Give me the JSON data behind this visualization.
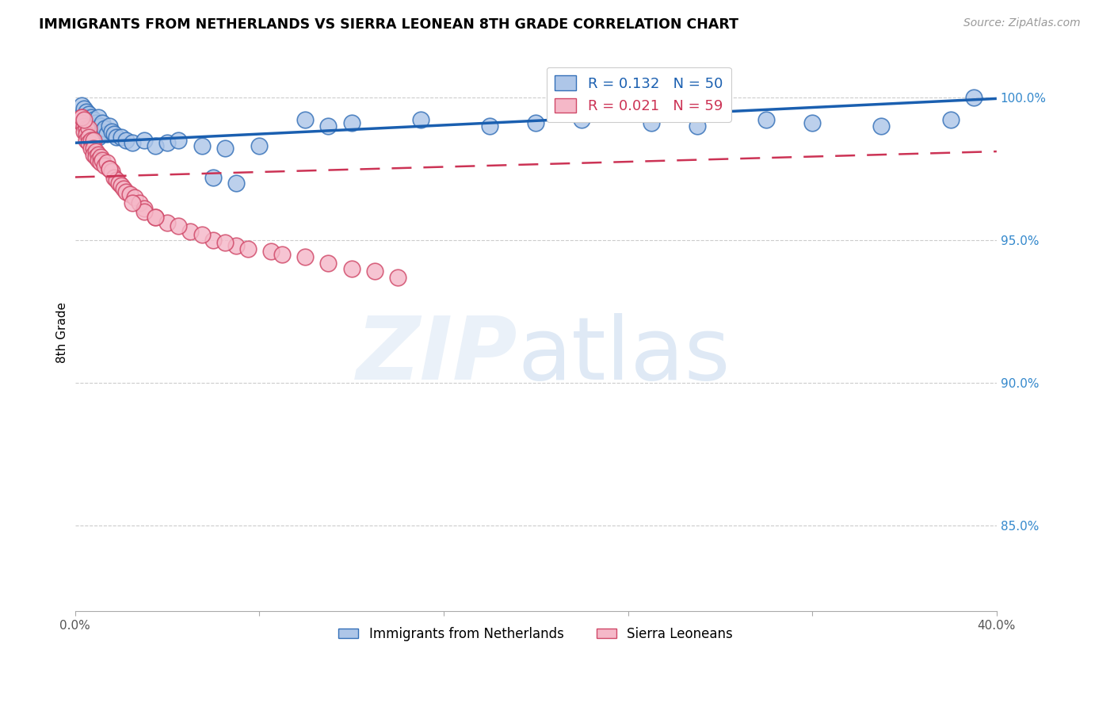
{
  "title": "IMMIGRANTS FROM NETHERLANDS VS SIERRA LEONEAN 8TH GRADE CORRELATION CHART",
  "source": "Source: ZipAtlas.com",
  "ylabel": "8th Grade",
  "y_tick_labels": [
    "85.0%",
    "90.0%",
    "95.0%",
    "100.0%"
  ],
  "y_tick_values": [
    0.85,
    0.9,
    0.95,
    1.0
  ],
  "xlim": [
    0.0,
    0.4
  ],
  "ylim": [
    0.82,
    1.015
  ],
  "legend_blue_r": "0.132",
  "legend_blue_n": "50",
  "legend_pink_r": "0.021",
  "legend_pink_n": "59",
  "blue_color": "#aec6e8",
  "blue_edge_color": "#3470b8",
  "pink_color": "#f5b8c8",
  "pink_edge_color": "#d04868",
  "blue_line_color": "#1a5fb0",
  "pink_line_color": "#cc3355",
  "blue_scatter_x": [
    0.003,
    0.004,
    0.005,
    0.005,
    0.006,
    0.006,
    0.007,
    0.007,
    0.008,
    0.008,
    0.009,
    0.009,
    0.01,
    0.01,
    0.011,
    0.011,
    0.012,
    0.012,
    0.013,
    0.014,
    0.015,
    0.016,
    0.017,
    0.018,
    0.02,
    0.022,
    0.025,
    0.03,
    0.035,
    0.04,
    0.045,
    0.055,
    0.065,
    0.08,
    0.1,
    0.11,
    0.12,
    0.15,
    0.18,
    0.2,
    0.22,
    0.25,
    0.27,
    0.3,
    0.32,
    0.35,
    0.38,
    0.39,
    0.06,
    0.07
  ],
  "blue_scatter_y": [
    0.997,
    0.996,
    0.995,
    0.993,
    0.994,
    0.991,
    0.993,
    0.99,
    0.992,
    0.989,
    0.991,
    0.988,
    0.993,
    0.986,
    0.99,
    0.987,
    0.991,
    0.988,
    0.989,
    0.987,
    0.99,
    0.988,
    0.987,
    0.986,
    0.986,
    0.985,
    0.984,
    0.985,
    0.983,
    0.984,
    0.985,
    0.983,
    0.982,
    0.983,
    0.992,
    0.99,
    0.991,
    0.992,
    0.99,
    0.991,
    0.992,
    0.991,
    0.99,
    0.992,
    0.991,
    0.99,
    0.992,
    1.0,
    0.972,
    0.97
  ],
  "pink_scatter_x": [
    0.002,
    0.003,
    0.003,
    0.004,
    0.004,
    0.005,
    0.005,
    0.005,
    0.006,
    0.006,
    0.006,
    0.007,
    0.007,
    0.008,
    0.008,
    0.008,
    0.009,
    0.009,
    0.01,
    0.01,
    0.011,
    0.011,
    0.012,
    0.013,
    0.014,
    0.015,
    0.016,
    0.017,
    0.018,
    0.019,
    0.02,
    0.021,
    0.022,
    0.024,
    0.026,
    0.028,
    0.03,
    0.035,
    0.04,
    0.05,
    0.06,
    0.07,
    0.085,
    0.1,
    0.12,
    0.14,
    0.03,
    0.025,
    0.015,
    0.035,
    0.045,
    0.055,
    0.065,
    0.075,
    0.09,
    0.11,
    0.13,
    0.003,
    0.004
  ],
  "pink_scatter_y": [
    0.992,
    0.993,
    0.991,
    0.99,
    0.988,
    0.989,
    0.987,
    0.985,
    0.989,
    0.986,
    0.984,
    0.985,
    0.982,
    0.985,
    0.982,
    0.98,
    0.981,
    0.979,
    0.98,
    0.978,
    0.979,
    0.977,
    0.978,
    0.976,
    0.977,
    0.975,
    0.974,
    0.972,
    0.971,
    0.97,
    0.969,
    0.968,
    0.967,
    0.966,
    0.965,
    0.963,
    0.961,
    0.958,
    0.956,
    0.953,
    0.95,
    0.948,
    0.946,
    0.944,
    0.94,
    0.937,
    0.96,
    0.963,
    0.975,
    0.958,
    0.955,
    0.952,
    0.949,
    0.947,
    0.945,
    0.942,
    0.939,
    0.993,
    0.992
  ]
}
